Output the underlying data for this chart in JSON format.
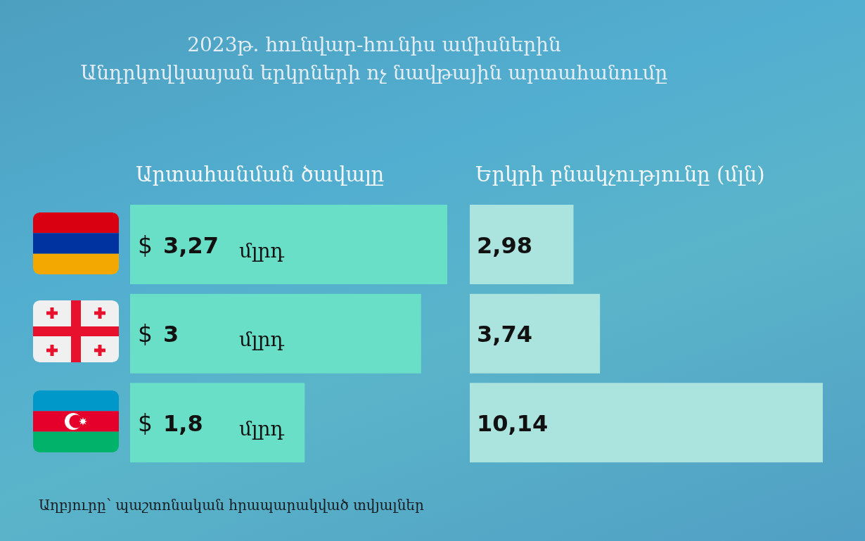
{
  "chart_data": [
    {
      "type": "bar",
      "orientation": "horizontal",
      "title": "2023թ. հունվար-հունիս ամիսներին\nԱնդրկովկասյան երկրների ոչ նավթային արտահանումը",
      "subtitle": "Արտահանման ծավալը",
      "categories": [
        null,
        null,
        null
      ],
      "values": [
        3.27,
        3,
        1.8
      ],
      "color": "#69dfc7",
      "value_labels": [
        "$ 3,27 մլրդ",
        "$ 3 մլրդ",
        "$ 1,8 մլրդ"
      ],
      "annotations": [
        "Աղբյուրը՝ պաշտոնական հրապարակված տվյալներ"
      ]
    },
    {
      "type": "bar",
      "orientation": "horizontal",
      "subtitle": "Երկրի բնակչությունը (մլն)",
      "categories": [
        null,
        null,
        null
      ],
      "values": [
        2.98,
        3.74,
        10.14
      ],
      "color": "#abe3df",
      "value_labels": [
        "2,98",
        "3,74",
        "10,14"
      ]
    }
  ]
}
